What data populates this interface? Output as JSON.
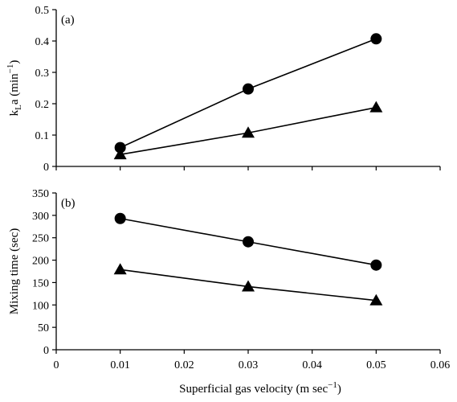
{
  "chart_data": [
    {
      "type": "line",
      "panel_label": "(a)",
      "ylabel": "kLa (min⁻¹)",
      "ylabel_parts": {
        "main": "k",
        "sub": "L",
        "after": "a (min",
        "sup": "−1",
        "close": ")"
      },
      "xlim": [
        0,
        0.06
      ],
      "ylim": [
        0,
        0.5
      ],
      "x_ticks": [
        0,
        0.01,
        0.02,
        0.03,
        0.04,
        0.05,
        0.06
      ],
      "y_ticks": [
        0,
        0.1,
        0.2,
        0.3,
        0.4,
        0.5
      ],
      "y_tick_labels": [
        "0",
        "0.1",
        "0.2",
        "0.3",
        "0.4",
        "0.5"
      ],
      "show_x_tick_labels": false,
      "grid": false,
      "x": [
        0.01,
        0.03,
        0.05
      ],
      "series": [
        {
          "marker": "circle",
          "color": "#000000",
          "values": [
            0.06,
            0.247,
            0.407
          ]
        },
        {
          "marker": "triangle",
          "color": "#000000",
          "values": [
            0.038,
            0.107,
            0.188
          ]
        }
      ]
    },
    {
      "type": "line",
      "panel_label": "(b)",
      "ylabel": "Mixing time (sec)",
      "xlabel": "Superficial gas velocity (m sec⁻¹)",
      "xlabel_parts": {
        "main": "Superficial gas velocity (m sec",
        "sup": "−1",
        "close": ")"
      },
      "xlim": [
        0,
        0.06
      ],
      "ylim": [
        0,
        350
      ],
      "x_ticks": [
        0,
        0.01,
        0.02,
        0.03,
        0.04,
        0.05,
        0.06
      ],
      "x_tick_labels": [
        "0",
        "0.01",
        "0.02",
        "0.03",
        "0.04",
        "0.05",
        "0.06"
      ],
      "y_ticks": [
        0,
        50,
        100,
        150,
        200,
        250,
        300,
        350
      ],
      "y_tick_labels": [
        "0",
        "50",
        "100",
        "150",
        "200",
        "250",
        "300",
        "350"
      ],
      "show_x_tick_labels": true,
      "grid": false,
      "x": [
        0.01,
        0.03,
        0.05
      ],
      "series": [
        {
          "marker": "circle",
          "color": "#000000",
          "values": [
            293,
            241,
            189
          ]
        },
        {
          "marker": "triangle",
          "color": "#000000",
          "values": [
            179,
            141,
            110
          ]
        }
      ]
    }
  ]
}
